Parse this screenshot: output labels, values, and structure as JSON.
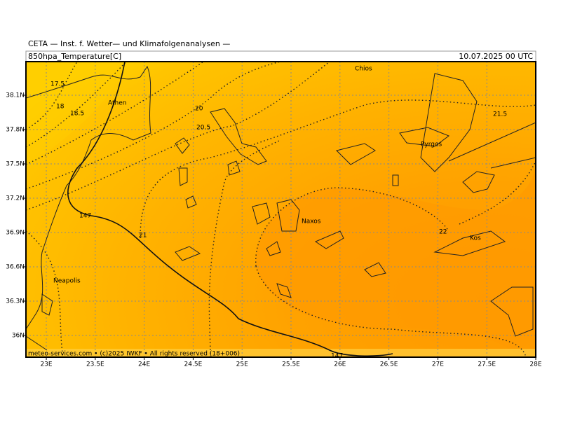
{
  "header": {
    "institute": "CETA — Inst. f. Wetter— und Klimafolgenanalysen —",
    "parameter": "850hpa_Temperature[C]",
    "valid_time": "10.07.2025 00 UTC"
  },
  "map": {
    "lonlim": [
      22.792,
      28
    ],
    "latlim": [
      35.81,
      38.394
    ],
    "lon_ticks": [
      {
        "value": 23,
        "label": "23E"
      },
      {
        "value": 23.5,
        "label": "23.5E"
      },
      {
        "value": 24,
        "label": "24E"
      },
      {
        "value": 24.5,
        "label": "24.5E"
      },
      {
        "value": 25,
        "label": "25E"
      },
      {
        "value": 25.5,
        "label": "25.5E"
      },
      {
        "value": 26,
        "label": "26E"
      },
      {
        "value": 26.5,
        "label": "26.5E"
      },
      {
        "value": 27,
        "label": "27E"
      },
      {
        "value": 27.5,
        "label": "27.5E"
      },
      {
        "value": 28,
        "label": "28E"
      }
    ],
    "lat_ticks": [
      {
        "value": 36,
        "label": "36N"
      },
      {
        "value": 36.3,
        "label": "36.3N"
      },
      {
        "value": 36.6,
        "label": "36.6N"
      },
      {
        "value": 36.9,
        "label": "36.9N"
      },
      {
        "value": 37.2,
        "label": "37.2N"
      },
      {
        "value": 37.5,
        "label": "37.5N"
      },
      {
        "value": 37.8,
        "label": "37.8N"
      },
      {
        "value": 38.1,
        "label": "38.1N"
      }
    ],
    "places": [
      "Chios",
      "Athen",
      "Pyrgos",
      "Naxos",
      "Kos",
      "Neapolis"
    ],
    "contour_labels": [
      "17.5",
      "18",
      "18.5",
      "20",
      "20.5",
      "21",
      "21.5",
      "22",
      "147",
      "147"
    ]
  },
  "footer": "meteo-services.com • (c)2025 IWKF • All rights reserved (18+006)"
}
